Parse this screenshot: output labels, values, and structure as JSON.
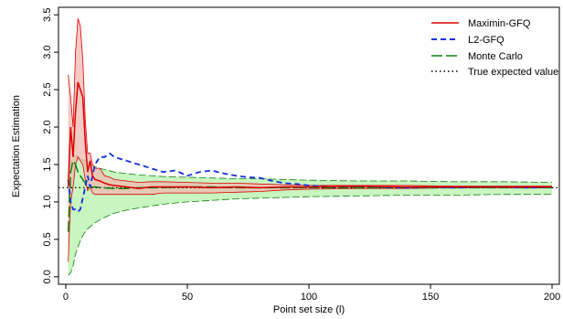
{
  "chart_data": {
    "type": "line",
    "title": "",
    "xlabel": "Point set size (l)",
    "ylabel": "Expectation Estimation",
    "xlim": [
      -3,
      203
    ],
    "ylim": [
      -0.1,
      3.6
    ],
    "x_ticks": [
      0,
      50,
      100,
      150,
      200
    ],
    "y_ticks": [
      0.0,
      0.5,
      1.0,
      1.5,
      2.0,
      2.5,
      3.0,
      3.5
    ],
    "x_tick_labels": [
      "0",
      "50",
      "100",
      "150",
      "200"
    ],
    "y_tick_labels": [
      "0.0",
      "0.5",
      "1.0",
      "1.5",
      "2.0",
      "2.5",
      "3.0",
      "3.5"
    ],
    "grid": false,
    "legend_position": "top-right",
    "true_value": 1.19,
    "series": [
      {
        "name": "Maximin-GFQ",
        "color": "#dd0000",
        "style": "solid",
        "x": [
          1,
          2,
          3,
          4,
          5,
          6,
          7,
          8,
          9,
          10,
          11,
          12,
          14,
          16,
          18,
          20,
          25,
          30,
          35,
          40,
          50,
          60,
          70,
          80,
          90,
          100,
          120,
          140,
          160,
          180,
          200
        ],
        "values": [
          1.2,
          2.0,
          1.6,
          2.2,
          2.6,
          2.5,
          2.4,
          1.8,
          1.4,
          1.55,
          1.35,
          1.3,
          1.28,
          1.25,
          1.23,
          1.22,
          1.2,
          1.18,
          1.2,
          1.2,
          1.2,
          1.19,
          1.2,
          1.19,
          1.2,
          1.2,
          1.21,
          1.2,
          1.2,
          1.2,
          1.2
        ],
        "band_lower": [
          0.2,
          1.0,
          1.2,
          1.5,
          1.6,
          1.55,
          1.5,
          1.3,
          1.15,
          1.2,
          1.12,
          1.1,
          1.1,
          1.1,
          1.1,
          1.1,
          1.1,
          1.1,
          1.1,
          1.12,
          1.12,
          1.12,
          1.13,
          1.14,
          1.16,
          1.17,
          1.18,
          1.18,
          1.19,
          1.19,
          1.19
        ],
        "band_upper": [
          2.7,
          2.4,
          2.0,
          3.0,
          3.45,
          3.35,
          2.9,
          2.1,
          1.65,
          1.65,
          1.5,
          1.45,
          1.45,
          1.35,
          1.33,
          1.3,
          1.28,
          1.26,
          1.27,
          1.27,
          1.26,
          1.25,
          1.25,
          1.24,
          1.23,
          1.22,
          1.22,
          1.22,
          1.21,
          1.21,
          1.21
        ],
        "band_color": "#f0b8b0"
      },
      {
        "name": "L2-GFQ",
        "color": "#1030e0",
        "style": "dashed",
        "x": [
          1,
          2,
          3,
          4,
          5,
          6,
          7,
          8,
          9,
          10,
          12,
          14,
          16,
          18,
          20,
          25,
          30,
          35,
          40,
          45,
          50,
          55,
          60,
          65,
          70,
          75,
          80,
          85,
          90,
          95,
          100,
          110,
          120,
          130,
          140,
          150,
          160,
          170,
          180,
          190,
          200
        ],
        "values": [
          1.3,
          1.0,
          0.9,
          0.9,
          0.87,
          0.9,
          1.05,
          1.2,
          1.35,
          1.2,
          1.5,
          1.6,
          1.6,
          1.65,
          1.6,
          1.55,
          1.5,
          1.45,
          1.4,
          1.42,
          1.35,
          1.4,
          1.42,
          1.38,
          1.35,
          1.33,
          1.32,
          1.28,
          1.25,
          1.24,
          1.22,
          1.2,
          1.21,
          1.2,
          1.19,
          1.2,
          1.19,
          1.2,
          1.2,
          1.19,
          1.2
        ]
      },
      {
        "name": "Monte Carlo",
        "color": "#108010",
        "style": "longdash",
        "x": [
          1,
          2,
          3,
          4,
          5,
          6,
          7,
          8,
          9,
          10,
          12,
          15,
          20,
          25,
          30,
          40,
          50,
          60,
          70,
          80,
          90,
          100,
          120,
          140,
          160,
          180,
          200
        ],
        "values": [
          0.6,
          1.4,
          1.55,
          1.5,
          1.4,
          1.35,
          1.3,
          1.25,
          1.22,
          1.2,
          1.2,
          1.19,
          1.18,
          1.18,
          1.19,
          1.19,
          1.2,
          1.2,
          1.19,
          1.19,
          1.19,
          1.19,
          1.19,
          1.19,
          1.19,
          1.19,
          1.19
        ],
        "band_lower": [
          0.02,
          0.05,
          0.15,
          0.3,
          0.4,
          0.48,
          0.55,
          0.6,
          0.64,
          0.67,
          0.72,
          0.78,
          0.85,
          0.89,
          0.92,
          0.97,
          1.0,
          1.02,
          1.04,
          1.05,
          1.06,
          1.07,
          1.08,
          1.09,
          1.09,
          1.1,
          1.1
        ],
        "band_upper": [
          1.2,
          1.5,
          1.6,
          1.62,
          1.6,
          1.58,
          1.56,
          1.55,
          1.52,
          1.5,
          1.47,
          1.44,
          1.4,
          1.38,
          1.36,
          1.34,
          1.33,
          1.32,
          1.31,
          1.31,
          1.3,
          1.29,
          1.28,
          1.28,
          1.27,
          1.27,
          1.26
        ],
        "band_color": "#c8f5c0"
      },
      {
        "name": "True expected value",
        "color": "#000000",
        "style": "dotted"
      }
    ]
  }
}
